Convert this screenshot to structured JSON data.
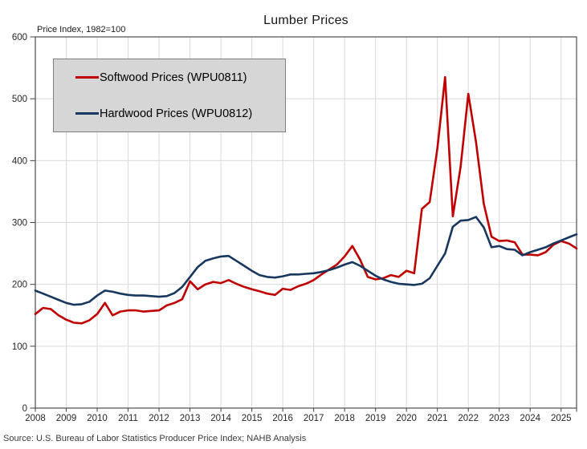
{
  "chart": {
    "title": "Lumber Prices",
    "axis_note": "Price Index, 1982=100",
    "source": "Source: U.S. Bureau of Labor Statistics Producer Price Index; NAHB Analysis"
  },
  "legend": {
    "items": [
      {
        "label": "Softwood Prices (WPU0811)",
        "color": "#c00000"
      },
      {
        "label": "Hardwood Prices (WPU0812)",
        "color": "#17375e"
      }
    ]
  },
  "colors": {
    "softwood": "#c00000",
    "hardwood": "#17375e",
    "grid": "#d9d9d9",
    "border": "#595959",
    "tick": "#404040"
  },
  "chart_data": {
    "type": "line",
    "title": "Lumber Prices",
    "xlabel": "",
    "ylabel": "Price Index, 1982=100",
    "x_start": 2008,
    "x_step_years": 0.25,
    "x_span_years": 17.5,
    "x_tick_labels": [
      "2008",
      "2009",
      "2010",
      "2011",
      "2012",
      "2013",
      "2014",
      "2015",
      "2016",
      "2017",
      "2018",
      "2019",
      "2020",
      "2021",
      "2022",
      "2023",
      "2024",
      "2025"
    ],
    "y_ticks": [
      0,
      100,
      200,
      300,
      400,
      500,
      600
    ],
    "ylim": [
      0,
      600
    ],
    "grid": true,
    "legend_position": "top-left",
    "series": [
      {
        "name": "Softwood Prices (WPU0811)",
        "color": "#c00000",
        "values": [
          152,
          162,
          160,
          150,
          143,
          138,
          137,
          142,
          152,
          170,
          150,
          156,
          158,
          158,
          156,
          157,
          158,
          166,
          170,
          176,
          205,
          192,
          200,
          204,
          202,
          207,
          201,
          196,
          192,
          189,
          185,
          183,
          193,
          191,
          197,
          201,
          207,
          216,
          224,
          232,
          245,
          262,
          240,
          212,
          208,
          210,
          215,
          212,
          222,
          218,
          322,
          333,
          420,
          535,
          310,
          390,
          508,
          430,
          330,
          277,
          270,
          271,
          268,
          248,
          248,
          247,
          252,
          264,
          270,
          266,
          258
        ]
      },
      {
        "name": "Hardwood Prices (WPU0812)",
        "color": "#17375e",
        "values": [
          190,
          185,
          180,
          175,
          170,
          167,
          168,
          172,
          182,
          190,
          188,
          185,
          183,
          182,
          182,
          181,
          180,
          181,
          186,
          196,
          212,
          228,
          238,
          242,
          245,
          246,
          238,
          230,
          222,
          215,
          212,
          211,
          213,
          216,
          216,
          217,
          218,
          220,
          223,
          227,
          232,
          236,
          230,
          222,
          214,
          208,
          204,
          201,
          200,
          199,
          201,
          210,
          230,
          250,
          293,
          303,
          304,
          309,
          292,
          260,
          262,
          257,
          256,
          247,
          252,
          256,
          260,
          266,
          271,
          276,
          281
        ]
      }
    ]
  }
}
